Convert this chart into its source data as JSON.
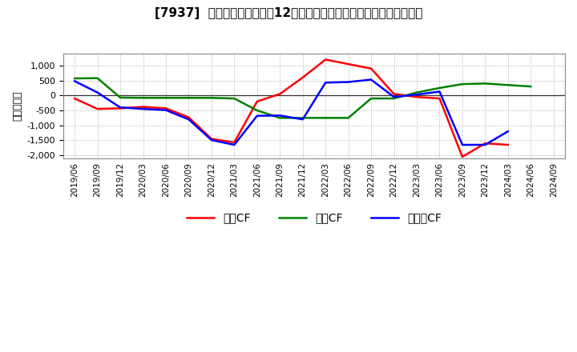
{
  "title": "[7937]  キャッシュフローの12か月移動合計の対前年同期増減額の推移",
  "ylabel": "（百万円）",
  "background_color": "#ffffff",
  "plot_bg_color": "#ffffff",
  "grid_color": "#aaaaaa",
  "xlabels": [
    "2019/06",
    "2019/09",
    "2019/12",
    "2020/03",
    "2020/06",
    "2020/09",
    "2020/12",
    "2021/03",
    "2021/06",
    "2021/09",
    "2021/12",
    "2022/03",
    "2022/06",
    "2022/09",
    "2022/12",
    "2023/03",
    "2023/06",
    "2023/09",
    "2023/12",
    "2024/03",
    "2024/06",
    "2024/09"
  ],
  "eigyo_cf": [
    -100,
    -450,
    -430,
    -380,
    -430,
    -730,
    -1450,
    -1570,
    -200,
    50,
    600,
    1200,
    1050,
    900,
    50,
    -50,
    -100,
    -2050,
    -1600,
    -1650,
    null,
    null
  ],
  "toshi_cf": [
    570,
    580,
    -70,
    -80,
    -80,
    -80,
    -80,
    -100,
    -500,
    -750,
    -750,
    -750,
    -750,
    -100,
    -100,
    100,
    250,
    380,
    400,
    350,
    300,
    null
  ],
  "free_cf": [
    480,
    100,
    -400,
    -450,
    -490,
    -800,
    -1490,
    -1650,
    -680,
    -670,
    -800,
    430,
    450,
    530,
    -50,
    30,
    130,
    -1650,
    -1650,
    -1200,
    null,
    null
  ],
  "line_colors": {
    "eigyo": "#ff0000",
    "toshi": "#008000",
    "free": "#0000ff"
  },
  "legend_labels": {
    "eigyo": "営業CF",
    "toshi": "投資CF",
    "free": "フリーCF"
  },
  "ylim": [
    -2100,
    1400
  ],
  "yticks": [
    -2000,
    -1500,
    -1000,
    -500,
    0,
    500,
    1000
  ],
  "line_width": 1.8
}
